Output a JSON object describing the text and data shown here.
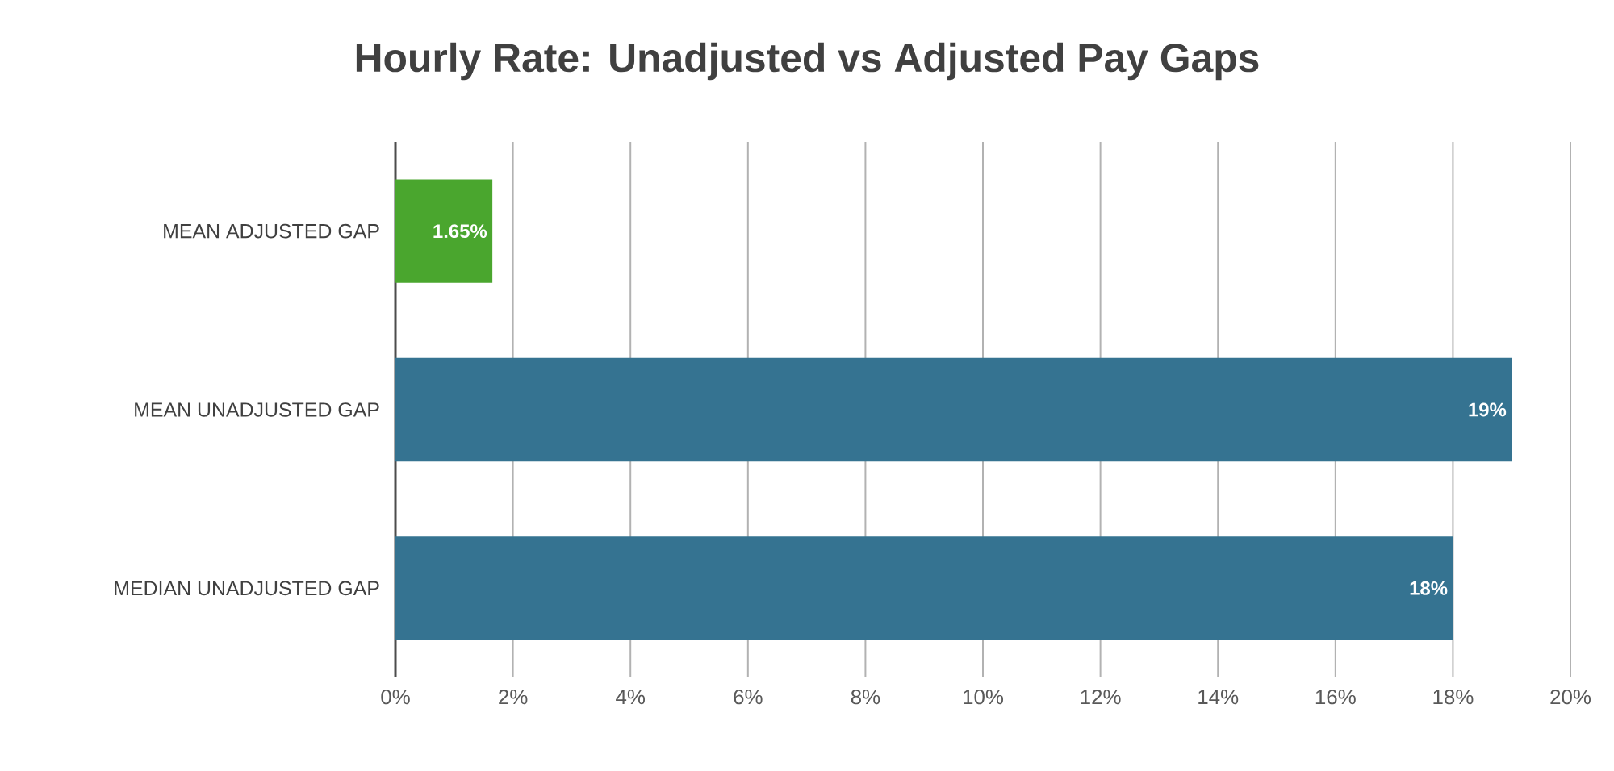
{
  "chart_data": {
    "type": "bar",
    "orientation": "horizontal",
    "title": "Hourly Rate: Unadjusted vs Adjusted Pay Gaps",
    "categories": [
      "MEAN ADJUSTED GAP",
      "MEAN UNADJUSTED GAP",
      "MEDIAN UNADJUSTED GAP"
    ],
    "values": [
      1.65,
      19,
      18
    ],
    "colors": [
      "#4aa62e",
      "#357391",
      "#357391"
    ],
    "value_labels": [
      "1.65%",
      "19%",
      "18%"
    ],
    "xlim": [
      0,
      20
    ],
    "xticks": [
      {
        "value": 0,
        "label": "0%"
      },
      {
        "value": 2,
        "label": "2%"
      },
      {
        "value": 4,
        "label": "4%"
      },
      {
        "value": 6,
        "label": "6%"
      },
      {
        "value": 8,
        "label": "8%"
      },
      {
        "value": 10,
        "label": "10%"
      },
      {
        "value": 12,
        "label": "12%"
      },
      {
        "value": 14,
        "label": "14%"
      },
      {
        "value": 16,
        "label": "16%"
      },
      {
        "value": 18,
        "label": "18%"
      },
      {
        "value": 20,
        "label": "20%"
      }
    ],
    "grid": "x"
  }
}
